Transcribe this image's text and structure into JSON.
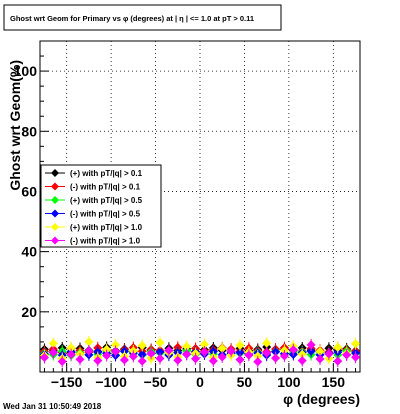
{
  "chart_data": {
    "type": "scatter",
    "title": "Ghost wrt Geom for Primary vs φ (degrees) at | η | <= 1.0 at pT > 0.11",
    "xlabel": "φ (degrees)",
    "ylabel": "Ghost wrt Geom(%)",
    "xlim": [
      -180,
      180
    ],
    "ylim": [
      0,
      110
    ],
    "x_ticks": [
      -150,
      -100,
      -50,
      0,
      50,
      100,
      150
    ],
    "x_tick_labels": [
      "−150",
      "−100",
      "−50",
      "0",
      "50",
      "100",
      "150"
    ],
    "y_ticks": [
      20,
      40,
      60,
      80,
      100
    ],
    "y_tick_labels": [
      "20",
      "40",
      "60",
      "80",
      "100"
    ],
    "grid": true,
    "legend_placement": "middle-left",
    "series": [
      {
        "name": "(+) with pT/|q| > 0.1",
        "color": "#000000",
        "x": [
          -175,
          -165,
          -155,
          -145,
          -135,
          -125,
          -115,
          -105,
          -95,
          -85,
          -75,
          -65,
          -55,
          -45,
          -35,
          -25,
          -15,
          -5,
          5,
          15,
          25,
          35,
          45,
          55,
          65,
          75,
          85,
          95,
          105,
          115,
          125,
          135,
          145,
          155,
          165,
          175
        ],
        "y": [
          7.5,
          7.0,
          8.0,
          6.5,
          7.8,
          7.2,
          6.8,
          8.2,
          7.0,
          7.6,
          6.9,
          8.1,
          7.3,
          6.6,
          7.9,
          7.1,
          7.7,
          6.8,
          7.4,
          8.0,
          7.2,
          6.7,
          7.8,
          7.0,
          7.5,
          8.3,
          6.9,
          7.6,
          7.1,
          8.0,
          7.3,
          6.8,
          7.9,
          7.2,
          7.7,
          7.0
        ]
      },
      {
        "name": "(-) with pT/|q| > 0.1",
        "color": "#ff0000",
        "x": [
          -175,
          -165,
          -155,
          -145,
          -135,
          -125,
          -115,
          -105,
          -95,
          -85,
          -75,
          -65,
          -55,
          -45,
          -35,
          -25,
          -15,
          -5,
          5,
          15,
          25,
          35,
          45,
          55,
          65,
          75,
          85,
          95,
          105,
          115,
          125,
          135,
          145,
          155,
          165,
          175
        ],
        "y": [
          6.8,
          7.6,
          6.5,
          7.9,
          7.1,
          6.6,
          8.0,
          7.3,
          6.7,
          7.4,
          8.1,
          6.9,
          7.5,
          7.2,
          6.6,
          8.2,
          7.0,
          7.8,
          6.9,
          7.3,
          8.0,
          7.6,
          6.8,
          7.9,
          7.1,
          6.7,
          7.6,
          8.1,
          7.4,
          6.9,
          7.8,
          7.2,
          6.6,
          8.0,
          7.3,
          6.9
        ]
      },
      {
        "name": "(+) with pT/|q| > 0.5",
        "color": "#00ff00",
        "x": [
          -175,
          -165,
          -155,
          -145,
          -135,
          -125,
          -115,
          -105,
          -95,
          -85,
          -75,
          -65,
          -55,
          -45,
          -35,
          -25,
          -15,
          -5,
          5,
          15,
          25,
          35,
          45,
          55,
          65,
          75,
          85,
          95,
          105,
          115,
          125,
          135,
          145,
          155,
          165,
          175
        ],
        "y": [
          6.2,
          5.8,
          6.9,
          5.5,
          6.4,
          7.0,
          5.9,
          6.6,
          5.7,
          6.8,
          6.1,
          5.6,
          6.7,
          6.3,
          5.9,
          6.5,
          7.1,
          5.8,
          6.4,
          6.0,
          5.7,
          6.9,
          6.2,
          5.6,
          6.6,
          6.0,
          6.8,
          5.9,
          6.3,
          6.7,
          5.8,
          6.5,
          6.1,
          5.7,
          6.9,
          6.2
        ]
      },
      {
        "name": "(-) with pT/|q| > 0.5",
        "color": "#0000ff",
        "x": [
          -175,
          -165,
          -155,
          -145,
          -135,
          -125,
          -115,
          -105,
          -95,
          -85,
          -75,
          -65,
          -55,
          -45,
          -35,
          -25,
          -15,
          -5,
          5,
          15,
          25,
          35,
          45,
          55,
          65,
          75,
          85,
          95,
          105,
          115,
          125,
          135,
          145,
          155,
          165,
          175
        ],
        "y": [
          5.9,
          6.5,
          5.6,
          6.8,
          6.0,
          5.7,
          6.6,
          6.2,
          5.5,
          6.9,
          6.3,
          5.8,
          6.1,
          6.7,
          5.6,
          6.4,
          5.9,
          6.6,
          6.0,
          6.8,
          5.7,
          6.2,
          6.5,
          5.9,
          6.3,
          5.6,
          6.7,
          6.1,
          5.8,
          6.4,
          6.9,
          5.7,
          6.2,
          6.6,
          5.8,
          6.3
        ]
      },
      {
        "name": "(+) with pT/|q| > 1.0",
        "color": "#ffff00",
        "x": [
          -175,
          -165,
          -155,
          -145,
          -135,
          -125,
          -115,
          -105,
          -95,
          -85,
          -75,
          -65,
          -55,
          -45,
          -35,
          -25,
          -15,
          -5,
          5,
          15,
          25,
          35,
          45,
          55,
          65,
          75,
          85,
          95,
          105,
          115,
          125,
          135,
          145,
          155,
          165,
          175
        ],
        "y": [
          5.5,
          9.5,
          4.5,
          8.0,
          6.0,
          10.0,
          4.8,
          7.5,
          9.0,
          5.2,
          7.0,
          8.8,
          4.6,
          9.8,
          6.5,
          5.0,
          8.5,
          6.2,
          9.2,
          4.9,
          7.8,
          5.6,
          8.9,
          6.6,
          5.3,
          9.6,
          4.7,
          7.2,
          8.6,
          5.9,
          9.1,
          6.8,
          4.5,
          8.2,
          6.1,
          9.4
        ]
      },
      {
        "name": "(-) with pT/|q| > 1.0",
        "color": "#ff00ff",
        "x": [
          -175,
          -165,
          -155,
          -145,
          -135,
          -125,
          -115,
          -105,
          -95,
          -85,
          -75,
          -65,
          -55,
          -45,
          -35,
          -25,
          -15,
          -5,
          5,
          15,
          25,
          35,
          45,
          55,
          65,
          75,
          85,
          95,
          105,
          115,
          125,
          135,
          145,
          155,
          165,
          175
        ],
        "y": [
          4.8,
          6.5,
          3.5,
          5.8,
          4.2,
          7.0,
          3.8,
          5.5,
          6.8,
          4.0,
          5.2,
          3.6,
          6.2,
          4.5,
          7.2,
          3.9,
          5.9,
          4.4,
          6.6,
          3.7,
          5.0,
          6.9,
          4.1,
          5.6,
          3.4,
          6.3,
          4.6,
          5.3,
          7.4,
          3.8,
          9.0,
          4.3,
          6.0,
          3.6,
          5.7,
          4.9
        ]
      }
    ]
  },
  "footer": {
    "timestamp": "Wed Jan 31 10:50:49 2018"
  }
}
